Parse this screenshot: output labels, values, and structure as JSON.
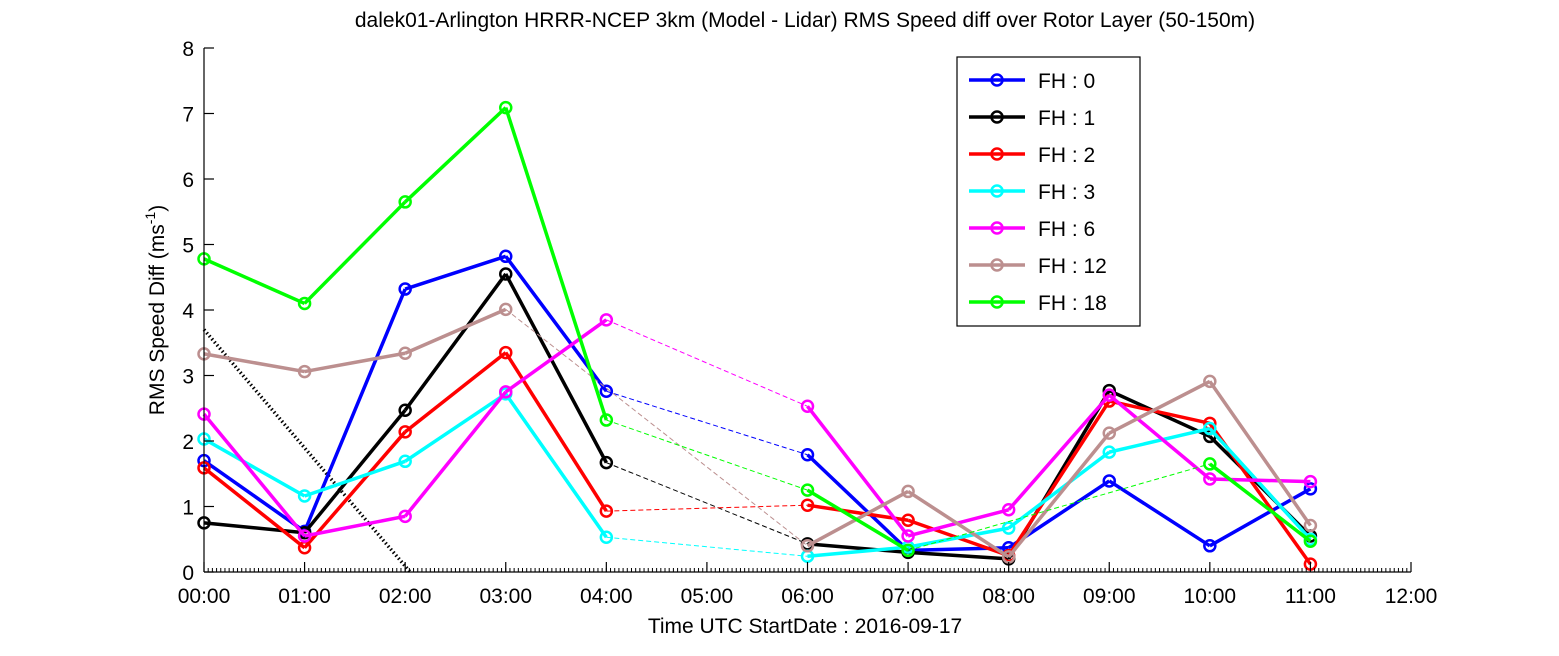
{
  "chart_data": {
    "type": "line",
    "title": "dalek01-Arlington HRRR-NCEP 3km (Model - Lidar) RMS Speed diff over Rotor Layer (50-150m)",
    "xlabel": "Time UTC    StartDate : 2016-09-17",
    "ylabel_main": "RMS Speed Diff (ms",
    "ylabel_sup": "-1",
    "ylabel_close": ")",
    "ylim": [
      0,
      8
    ],
    "xlim": [
      0,
      12
    ],
    "yticks": [
      "0",
      "1",
      "2",
      "3",
      "4",
      "5",
      "6",
      "7",
      "8"
    ],
    "xticks": [
      "00:00",
      "01:00",
      "02:00",
      "03:00",
      "04:00",
      "05:00",
      "06:00",
      "07:00",
      "08:00",
      "09:00",
      "10:00",
      "11:00",
      "12:00"
    ],
    "legend_position": "top-right",
    "grid": false,
    "reference_line": {
      "style": "dotted",
      "color": "#000000",
      "points": [
        [
          0,
          3.7
        ],
        [
          2.05,
          0
        ]
      ]
    },
    "series": [
      {
        "name": "FH : 0",
        "color": "#0000ff",
        "x": [
          0,
          1,
          2,
          3,
          4,
          6,
          7,
          8,
          9,
          10,
          11
        ],
        "y": [
          1.7,
          0.62,
          4.32,
          4.82,
          2.76,
          1.79,
          0.33,
          0.37,
          1.39,
          0.4,
          1.27
        ]
      },
      {
        "name": "FH : 1",
        "color": "#000000",
        "x": [
          0,
          1,
          2,
          3,
          4,
          6,
          7,
          8,
          9,
          10,
          11
        ],
        "y": [
          0.75,
          0.6,
          2.47,
          4.55,
          1.67,
          0.43,
          0.3,
          0.2,
          2.77,
          2.07,
          0.55
        ]
      },
      {
        "name": "FH : 2",
        "color": "#ff0000",
        "x": [
          0,
          1,
          2,
          3,
          4,
          6,
          7,
          8,
          9,
          10,
          11
        ],
        "y": [
          1.59,
          0.37,
          2.14,
          3.35,
          0.93,
          1.02,
          0.79,
          0.25,
          2.61,
          2.27,
          0.12
        ]
      },
      {
        "name": "FH : 3",
        "color": "#00ffff",
        "x": [
          0,
          1,
          2,
          3,
          4,
          6,
          7,
          8,
          9,
          10,
          11
        ],
        "y": [
          2.03,
          1.16,
          1.69,
          2.72,
          0.53,
          0.24,
          0.38,
          0.67,
          1.83,
          2.19,
          0.5
        ]
      },
      {
        "name": "FH : 6",
        "color": "#ff00ff",
        "x": [
          0,
          1,
          2,
          3,
          4,
          6,
          7,
          8,
          9,
          10,
          11
        ],
        "y": [
          2.41,
          0.55,
          0.85,
          2.75,
          3.85,
          2.53,
          0.55,
          0.95,
          2.7,
          1.42,
          1.38
        ]
      },
      {
        "name": "FH : 12",
        "color": "#bc8f8f",
        "x": [
          0,
          1,
          2,
          3,
          6,
          7,
          8,
          9,
          10,
          11
        ],
        "y": [
          3.33,
          3.06,
          3.34,
          4.01,
          0.4,
          1.23,
          0.23,
          2.12,
          2.91,
          0.71
        ]
      },
      {
        "name": "FH : 18",
        "color": "#00ff00",
        "x": [
          0,
          1,
          2,
          3,
          4,
          6,
          7,
          10,
          11
        ],
        "y": [
          4.78,
          4.1,
          5.65,
          7.09,
          2.32,
          1.25,
          0.33,
          1.65,
          0.47
        ]
      }
    ]
  }
}
